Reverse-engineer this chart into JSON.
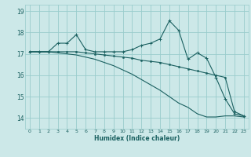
{
  "xlabel": "Humidex (Indice chaleur)",
  "xlim": [
    -0.5,
    23.5
  ],
  "ylim": [
    13.5,
    19.3
  ],
  "yticks": [
    14,
    15,
    16,
    17,
    18,
    19
  ],
  "xticks": [
    0,
    1,
    2,
    3,
    4,
    5,
    6,
    7,
    8,
    9,
    10,
    11,
    12,
    13,
    14,
    15,
    16,
    17,
    18,
    19,
    20,
    21,
    22,
    23
  ],
  "background_color": "#cce8e8",
  "grid_color": "#99cccc",
  "line_color": "#1a6060",
  "series1_x": [
    0,
    1,
    2,
    3,
    4,
    5,
    6,
    7,
    8,
    9,
    10,
    11,
    12,
    13,
    14,
    15,
    16,
    17,
    18,
    19,
    20,
    21,
    22,
    23
  ],
  "series1_y": [
    17.1,
    17.1,
    17.1,
    17.5,
    17.5,
    17.9,
    17.2,
    17.1,
    17.1,
    17.1,
    17.1,
    17.2,
    17.4,
    17.5,
    17.7,
    18.55,
    18.1,
    16.75,
    17.05,
    16.8,
    15.9,
    14.9,
    14.2,
    14.1
  ],
  "series2_x": [
    0,
    1,
    2,
    3,
    4,
    5,
    6,
    7,
    8,
    9,
    10,
    11,
    12,
    13,
    14,
    15,
    16,
    17,
    18,
    19,
    20,
    21,
    22,
    23
  ],
  "series2_y": [
    17.1,
    17.1,
    17.1,
    17.1,
    17.1,
    17.1,
    17.05,
    17.0,
    16.95,
    16.9,
    16.85,
    16.8,
    16.7,
    16.65,
    16.6,
    16.5,
    16.4,
    16.3,
    16.2,
    16.1,
    16.0,
    15.9,
    14.3,
    14.1
  ],
  "series3_x": [
    0,
    1,
    2,
    3,
    4,
    5,
    6,
    7,
    8,
    9,
    10,
    11,
    12,
    13,
    14,
    15,
    16,
    17,
    18,
    19,
    20,
    21,
    22,
    23
  ],
  "series3_y": [
    17.1,
    17.1,
    17.1,
    17.05,
    17.0,
    16.95,
    16.85,
    16.75,
    16.6,
    16.45,
    16.25,
    16.05,
    15.8,
    15.55,
    15.3,
    15.0,
    14.7,
    14.5,
    14.2,
    14.05,
    14.05,
    14.1,
    14.1,
    14.05
  ]
}
